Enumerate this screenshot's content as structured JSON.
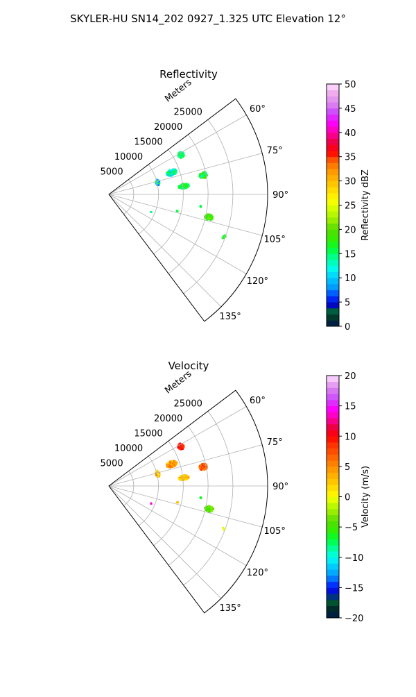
{
  "figure": {
    "title": "SKYLER-HU  SN14_202  0927_1.325 UTC Elevation 12°"
  },
  "chart_data": [
    {
      "type": "heatmap",
      "projection": "polar-sector",
      "title": "Reflectivity",
      "radial_label": "Meters",
      "range_ticks": [
        5000,
        10000,
        15000,
        20000,
        25000
      ],
      "range_tick_labels": [
        "5000",
        "10000",
        "15000",
        "20000",
        "25000"
      ],
      "range_max": 32000,
      "azimuth_range": [
        53,
        143
      ],
      "azimuth_ticks": [
        60,
        75,
        90,
        105,
        120,
        135
      ],
      "azimuth_tick_labels": [
        "60°",
        "75°",
        "90°",
        "105°",
        "120°",
        "135°"
      ],
      "grid": true,
      "colorbar": {
        "label": "Reflectivity dBZ",
        "range": [
          0,
          50
        ],
        "ticks": [
          0,
          5,
          10,
          15,
          20,
          25,
          30,
          35,
          40,
          45,
          50
        ],
        "tick_labels": [
          "0",
          "5",
          "10",
          "15",
          "20",
          "25",
          "30",
          "35",
          "40",
          "45",
          "50"
        ],
        "stops": [
          {
            "v": 0,
            "c": "#001a4d"
          },
          {
            "v": 1.5,
            "c": "#002b2b"
          },
          {
            "v": 3,
            "c": "#006633"
          },
          {
            "v": 4.5,
            "c": "#0000cc"
          },
          {
            "v": 6,
            "c": "#0033ff"
          },
          {
            "v": 8,
            "c": "#0099ff"
          },
          {
            "v": 10,
            "c": "#00ccff"
          },
          {
            "v": 12,
            "c": "#00ffee"
          },
          {
            "v": 14,
            "c": "#00ff99"
          },
          {
            "v": 16,
            "c": "#00ff33"
          },
          {
            "v": 18,
            "c": "#33ee00"
          },
          {
            "v": 20,
            "c": "#55dd00"
          },
          {
            "v": 22,
            "c": "#99ee00"
          },
          {
            "v": 24,
            "c": "#ccff00"
          },
          {
            "v": 26,
            "c": "#ffff00"
          },
          {
            "v": 28,
            "c": "#ffdd00"
          },
          {
            "v": 30,
            "c": "#ffbb00"
          },
          {
            "v": 32,
            "c": "#ff9900"
          },
          {
            "v": 34,
            "c": "#ff6600"
          },
          {
            "v": 36,
            "c": "#ff0000"
          },
          {
            "v": 38,
            "c": "#ee0044"
          },
          {
            "v": 40,
            "c": "#ff00aa"
          },
          {
            "v": 42,
            "c": "#ff00ff"
          },
          {
            "v": 44,
            "c": "#cc44ff"
          },
          {
            "v": 46,
            "c": "#dd88ee"
          },
          {
            "v": 48,
            "c": "#eeaaee"
          },
          {
            "v": 50,
            "c": "#ffe0ff"
          }
        ]
      },
      "echoes": [
        {
          "range": 16500,
          "azimuth": 60.5,
          "range_extent": 1300,
          "azimuth_extent": 4.5,
          "value": 15,
          "spread": 2,
          "density": 0.85,
          "seed": 11
        },
        {
          "range": 13300,
          "azimuth": 70,
          "range_extent": 2200,
          "azimuth_extent": 5.5,
          "value": 13,
          "spread": 4,
          "density": 0.8,
          "seed": 12
        },
        {
          "range": 10000,
          "azimuth": 75,
          "range_extent": 800,
          "azimuth_extent": 8,
          "value": 12,
          "spread": 6,
          "density": 0.55,
          "seed": 13
        },
        {
          "range": 19300,
          "azimuth": 78,
          "range_extent": 1700,
          "azimuth_extent": 4,
          "value": 17,
          "spread": 4,
          "density": 0.8,
          "seed": 14
        },
        {
          "range": 15000,
          "azimuth": 83,
          "range_extent": 2200,
          "azimuth_extent": 4,
          "value": 16,
          "spread": 3,
          "density": 0.8,
          "seed": 15
        },
        {
          "range": 20500,
          "azimuth": 102.5,
          "range_extent": 1800,
          "azimuth_extent": 3.5,
          "value": 19,
          "spread": 3,
          "density": 0.85,
          "seed": 16
        },
        {
          "range": 24500,
          "azimuth": 110,
          "range_extent": 700,
          "azimuth_extent": 2,
          "value": 17,
          "spread": 2,
          "density": 0.5,
          "seed": 17
        },
        {
          "range": 14000,
          "azimuth": 103,
          "range_extent": 300,
          "azimuth_extent": 1,
          "value": 16,
          "spread": 1,
          "density": 0.9,
          "seed": 18
        },
        {
          "range": 9000,
          "azimuth": 112,
          "range_extent": 200,
          "azimuth_extent": 1,
          "value": 14,
          "spread": 1,
          "density": 0.9,
          "seed": 19
        },
        {
          "range": 18500,
          "azimuth": 97,
          "range_extent": 300,
          "azimuth_extent": 1,
          "value": 15,
          "spread": 1,
          "density": 0.9,
          "seed": 20
        }
      ]
    },
    {
      "type": "heatmap",
      "projection": "polar-sector",
      "title": "Velocity",
      "radial_label": "Meters",
      "range_ticks": [
        5000,
        10000,
        15000,
        20000,
        25000
      ],
      "range_tick_labels": [
        "5000",
        "10000",
        "15000",
        "20000",
        "25000"
      ],
      "range_max": 32000,
      "azimuth_range": [
        53,
        143
      ],
      "azimuth_ticks": [
        60,
        75,
        90,
        105,
        120,
        135
      ],
      "azimuth_tick_labels": [
        "60°",
        "75°",
        "90°",
        "105°",
        "120°",
        "135°"
      ],
      "grid": true,
      "colorbar": {
        "label": "Velocity (m/s)",
        "range": [
          -20,
          20
        ],
        "ticks": [
          -20,
          -15,
          -10,
          -5,
          0,
          5,
          10,
          15,
          20
        ],
        "tick_labels": [
          "−20",
          "−15",
          "−10",
          "−5",
          "0",
          "5",
          "10",
          "15",
          "20"
        ],
        "stops": [
          {
            "v": -20,
            "c": "#001a4d"
          },
          {
            "v": -18.5,
            "c": "#002b2b"
          },
          {
            "v": -17,
            "c": "#006633"
          },
          {
            "v": -16,
            "c": "#0000cc"
          },
          {
            "v": -14.5,
            "c": "#0033ff"
          },
          {
            "v": -13,
            "c": "#0099ff"
          },
          {
            "v": -11.5,
            "c": "#00ccff"
          },
          {
            "v": -10,
            "c": "#00ffee"
          },
          {
            "v": -8.5,
            "c": "#00ff99"
          },
          {
            "v": -7,
            "c": "#00ff33"
          },
          {
            "v": -5.5,
            "c": "#33ee00"
          },
          {
            "v": -4,
            "c": "#55dd00"
          },
          {
            "v": -2.5,
            "c": "#99ee00"
          },
          {
            "v": -1,
            "c": "#ccff00"
          },
          {
            "v": 0,
            "c": "#ffff00"
          },
          {
            "v": 1.5,
            "c": "#ffdd00"
          },
          {
            "v": 3,
            "c": "#ffbb00"
          },
          {
            "v": 4.5,
            "c": "#ff9900"
          },
          {
            "v": 6.5,
            "c": "#ff6600"
          },
          {
            "v": 8.5,
            "c": "#ff3300"
          },
          {
            "v": 10,
            "c": "#ff0000"
          },
          {
            "v": 11.5,
            "c": "#ee0044"
          },
          {
            "v": 13,
            "c": "#ff00aa"
          },
          {
            "v": 14.5,
            "c": "#ff00ff"
          },
          {
            "v": 16,
            "c": "#cc44ff"
          },
          {
            "v": 18,
            "c": "#dd88ee"
          },
          {
            "v": 20,
            "c": "#ffe0ff"
          }
        ]
      },
      "echoes": [
        {
          "range": 16500,
          "azimuth": 60.5,
          "range_extent": 1300,
          "azimuth_extent": 4.5,
          "value": 9.5,
          "spread": 1.5,
          "density": 0.85,
          "seed": 31
        },
        {
          "range": 13300,
          "azimuth": 70,
          "range_extent": 2200,
          "azimuth_extent": 5.5,
          "value": 4,
          "spread": 3,
          "density": 0.8,
          "seed": 32
        },
        {
          "range": 10000,
          "azimuth": 75,
          "range_extent": 800,
          "azimuth_extent": 8,
          "value": 3,
          "spread": 3,
          "density": 0.55,
          "seed": 33
        },
        {
          "range": 19300,
          "azimuth": 78,
          "range_extent": 1700,
          "azimuth_extent": 4,
          "value": 7,
          "spread": 3,
          "density": 0.8,
          "seed": 34
        },
        {
          "range": 15000,
          "azimuth": 83,
          "range_extent": 2200,
          "azimuth_extent": 4,
          "value": 3,
          "spread": 2,
          "density": 0.8,
          "seed": 35
        },
        {
          "range": 20500,
          "azimuth": 102.5,
          "range_extent": 1800,
          "azimuth_extent": 3.5,
          "value": -4,
          "spread": 2,
          "density": 0.85,
          "seed": 36
        },
        {
          "range": 24500,
          "azimuth": 110,
          "range_extent": 700,
          "azimuth_extent": 2,
          "value": -1,
          "spread": 2,
          "density": 0.5,
          "seed": 37
        },
        {
          "range": 14000,
          "azimuth": 103,
          "range_extent": 300,
          "azimuth_extent": 1,
          "value": 3,
          "spread": 1,
          "density": 0.9,
          "seed": 38
        },
        {
          "range": 9000,
          "azimuth": 112,
          "range_extent": 200,
          "azimuth_extent": 1,
          "value": 14,
          "spread": 1,
          "density": 0.9,
          "seed": 39
        },
        {
          "range": 18500,
          "azimuth": 97,
          "range_extent": 300,
          "azimuth_extent": 1,
          "value": -6,
          "spread": 1,
          "density": 0.9,
          "seed": 40
        }
      ]
    }
  ]
}
